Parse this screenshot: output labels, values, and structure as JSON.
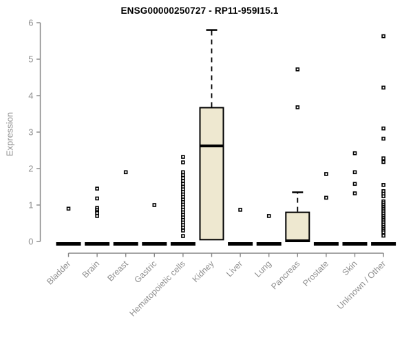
{
  "chart_data": {
    "type": "boxplot",
    "title": "ENSG00000250727 - RP11-959I15.1",
    "ylabel": "Expression",
    "ylim": [
      0,
      6
    ],
    "yticks": [
      0,
      1,
      2,
      3,
      4,
      5,
      6
    ],
    "grid": false,
    "colors": {
      "box_fill": "#EEE8D0",
      "box_border": "#000000",
      "axis": "#878787",
      "tick_label": "#909090",
      "outlier_stroke": "#000000",
      "outlier_fill": "#ffffff"
    },
    "categories": [
      "Bladder",
      "Brain",
      "Breast",
      "Gastric",
      "Hematopoietic cells",
      "Kidney",
      "Liver",
      "Lung",
      "Pancreas",
      "Prostate",
      "Skin",
      "Unknown / Other"
    ],
    "series": [
      {
        "label": "Bladder",
        "box": {
          "q1": 0,
          "median": 0,
          "q3": 0.04,
          "whisker_low": 0,
          "whisker_high": 0.04
        },
        "outliers": [
          0.9
        ]
      },
      {
        "label": "Brain",
        "box": {
          "q1": 0,
          "median": 0,
          "q3": 0.04,
          "whisker_low": 0,
          "whisker_high": 0.04
        },
        "outliers": [
          1.45,
          1.18,
          0.92,
          0.87,
          0.82,
          0.78,
          0.7
        ]
      },
      {
        "label": "Breast",
        "box": {
          "q1": 0,
          "median": 0,
          "q3": 0.04,
          "whisker_low": 0,
          "whisker_high": 0.04
        },
        "outliers": [
          1.9
        ]
      },
      {
        "label": "Gastric",
        "box": {
          "q1": 0,
          "median": 0,
          "q3": 0.04,
          "whisker_low": 0,
          "whisker_high": 0.04
        },
        "outliers": [
          1.0
        ]
      },
      {
        "label": "Hematopoietic cells",
        "box": {
          "q1": 0,
          "median": 0,
          "q3": 0.04,
          "whisker_low": 0,
          "whisker_high": 0.04
        },
        "outliers": [
          2.32,
          2.17,
          1.9,
          1.82,
          1.74,
          1.66,
          1.58,
          1.5,
          1.43,
          1.36,
          1.29,
          1.22,
          1.15,
          1.08,
          1.01,
          0.94,
          0.87,
          0.8,
          0.73,
          0.66,
          0.59,
          0.52,
          0.45,
          0.38,
          0.3,
          0.15
        ]
      },
      {
        "label": "Kidney",
        "box": {
          "q1": 0.05,
          "median": 2.62,
          "q3": 3.67,
          "whisker_low": 0,
          "whisker_high": 5.8
        },
        "outliers": []
      },
      {
        "label": "Liver",
        "box": {
          "q1": 0,
          "median": 0,
          "q3": 0.04,
          "whisker_low": 0,
          "whisker_high": 0.04
        },
        "outliers": [
          0.87
        ]
      },
      {
        "label": "Lung",
        "box": {
          "q1": 0,
          "median": 0,
          "q3": 0.04,
          "whisker_low": 0,
          "whisker_high": 0.04
        },
        "outliers": [
          0.7
        ]
      },
      {
        "label": "Pancreas",
        "box": {
          "q1": 0,
          "median": 0.02,
          "q3": 0.8,
          "whisker_low": 0,
          "whisker_high": 1.35
        },
        "outliers": [
          4.72,
          3.68
        ]
      },
      {
        "label": "Prostate",
        "box": {
          "q1": 0,
          "median": 0,
          "q3": 0.04,
          "whisker_low": 0,
          "whisker_high": 0.04
        },
        "outliers": [
          1.85,
          1.2
        ]
      },
      {
        "label": "Skin",
        "box": {
          "q1": 0,
          "median": 0,
          "q3": 0.04,
          "whisker_low": 0,
          "whisker_high": 0.04
        },
        "outliers": [
          2.42,
          1.9,
          1.58,
          1.32
        ]
      },
      {
        "label": "Unknown / Other",
        "box": {
          "q1": 0,
          "median": 0,
          "q3": 0.04,
          "whisker_low": 0,
          "whisker_high": 0.04
        },
        "outliers": [
          5.63,
          4.22,
          3.1,
          2.82,
          2.28,
          2.18,
          1.55,
          1.38,
          1.31,
          1.24,
          1.1,
          1.05,
          1.0,
          0.95,
          0.9,
          0.85,
          0.8,
          0.75,
          0.7,
          0.65,
          0.6,
          0.55,
          0.5,
          0.45,
          0.4,
          0.35,
          0.3,
          0.25,
          0.16
        ]
      }
    ]
  }
}
